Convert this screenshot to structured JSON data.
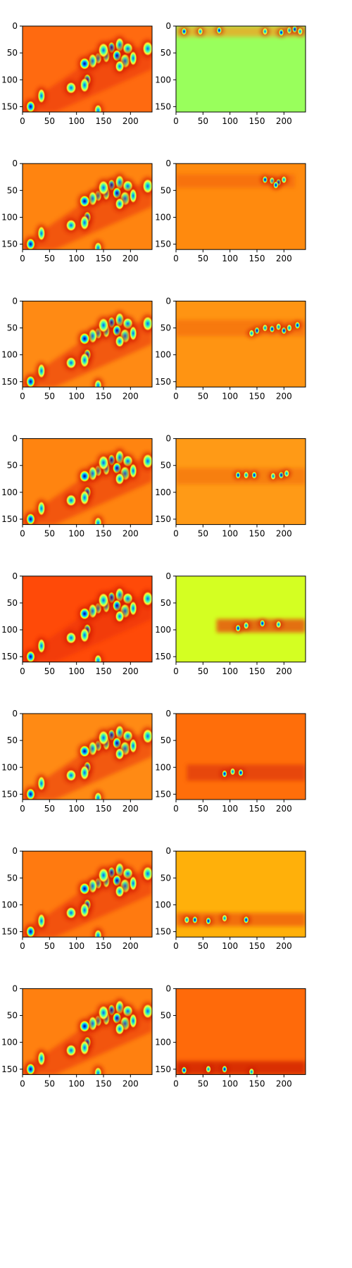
{
  "chart_data": {
    "type": "heatmap",
    "layout": {
      "rows": 8,
      "cols": 2
    },
    "colormap": "jet",
    "x_axis": {
      "range": [
        0,
        240
      ],
      "ticks": [
        0,
        50,
        100,
        150,
        200
      ]
    },
    "y_axis": {
      "range": [
        0,
        160
      ],
      "inverted": true,
      "ticks": [
        0,
        50,
        100,
        150
      ]
    },
    "features": [
      [
        165,
        40
      ],
      [
        180,
        35
      ],
      [
        195,
        42
      ],
      [
        155,
        55
      ],
      [
        175,
        55
      ],
      [
        190,
        65
      ],
      [
        140,
        60
      ],
      [
        130,
        65
      ],
      [
        115,
        70
      ],
      [
        205,
        60
      ],
      [
        180,
        75
      ],
      [
        150,
        45
      ],
      [
        120,
        100
      ],
      [
        115,
        110
      ],
      [
        90,
        115
      ],
      [
        35,
        130
      ],
      [
        15,
        150
      ],
      [
        232,
        42
      ],
      [
        140,
        157
      ]
    ],
    "panels": [
      {
        "row": 0,
        "col": 0,
        "kind": "full",
        "background": "#ff6a10"
      },
      {
        "row": 0,
        "col": 1,
        "kind": "band",
        "background": "#99ff5c",
        "band_y": [
          0,
          20
        ],
        "band_x": [
          0,
          240
        ],
        "band_color": "#f3a120",
        "features": [
          [
            15,
            10
          ],
          [
            45,
            10
          ],
          [
            80,
            8
          ],
          [
            165,
            10
          ],
          [
            195,
            12
          ],
          [
            210,
            8
          ],
          [
            220,
            6
          ],
          [
            230,
            10
          ]
        ]
      },
      {
        "row": 1,
        "col": 0,
        "kind": "full",
        "background": "#ff8410"
      },
      {
        "row": 1,
        "col": 1,
        "kind": "band",
        "background": "#ff8a0e",
        "band_y": [
          20,
          45
        ],
        "band_x": [
          0,
          220
        ],
        "band_color": "#f56a0c",
        "features": [
          [
            165,
            30
          ],
          [
            178,
            32
          ],
          [
            190,
            35
          ],
          [
            200,
            30
          ],
          [
            185,
            40
          ]
        ]
      },
      {
        "row": 2,
        "col": 0,
        "kind": "full",
        "background": "#ff8a14"
      },
      {
        "row": 2,
        "col": 1,
        "kind": "band",
        "background": "#ff9412",
        "band_y": [
          35,
          65
        ],
        "band_x": [
          0,
          240
        ],
        "band_color": "#f5700c",
        "features": [
          [
            150,
            55
          ],
          [
            165,
            50
          ],
          [
            178,
            52
          ],
          [
            190,
            48
          ],
          [
            200,
            55
          ],
          [
            210,
            50
          ],
          [
            225,
            45
          ],
          [
            140,
            60
          ]
        ]
      },
      {
        "row": 3,
        "col": 0,
        "kind": "full",
        "background": "#ff8410"
      },
      {
        "row": 3,
        "col": 1,
        "kind": "band",
        "background": "#ff9a16",
        "band_y": [
          55,
          85
        ],
        "band_x": [
          0,
          240
        ],
        "band_color": "#f5760c",
        "features": [
          [
            115,
            68
          ],
          [
            130,
            68
          ],
          [
            145,
            68
          ],
          [
            180,
            70
          ],
          [
            195,
            68
          ],
          [
            205,
            65
          ]
        ]
      },
      {
        "row": 4,
        "col": 0,
        "kind": "full",
        "background": "#ff4a08"
      },
      {
        "row": 4,
        "col": 1,
        "kind": "band",
        "background": "#d4ff22",
        "band_y": [
          80,
          105
        ],
        "band_x": [
          75,
          240
        ],
        "band_color": "#e84010",
        "features": [
          [
            115,
            97
          ],
          [
            130,
            92
          ],
          [
            160,
            88
          ],
          [
            190,
            90
          ]
        ]
      },
      {
        "row": 5,
        "col": 0,
        "kind": "full",
        "background": "#ff8a14"
      },
      {
        "row": 5,
        "col": 1,
        "kind": "band",
        "background": "#ff6e0a",
        "band_y": [
          95,
          125
        ],
        "band_x": [
          20,
          240
        ],
        "band_color": "#e03a0a",
        "features": [
          [
            90,
            112
          ],
          [
            105,
            108
          ],
          [
            120,
            110
          ]
        ]
      },
      {
        "row": 6,
        "col": 0,
        "kind": "full",
        "background": "#ff7a10"
      },
      {
        "row": 6,
        "col": 1,
        "kind": "band",
        "background": "#ffb00a",
        "band_y": [
          115,
          140
        ],
        "band_x": [
          0,
          240
        ],
        "band_color": "#ee5a0c",
        "features": [
          [
            35,
            128
          ],
          [
            20,
            128
          ],
          [
            60,
            130
          ],
          [
            90,
            125
          ],
          [
            130,
            128
          ]
        ]
      },
      {
        "row": 7,
        "col": 0,
        "kind": "full",
        "background": "#ff8010"
      },
      {
        "row": 7,
        "col": 1,
        "kind": "band",
        "background": "#ff6a0a",
        "band_y": [
          135,
          160
        ],
        "band_x": [
          0,
          240
        ],
        "band_color": "#cc1a06",
        "features": [
          [
            15,
            152
          ],
          [
            140,
            155
          ],
          [
            90,
            150
          ],
          [
            60,
            150
          ]
        ]
      }
    ]
  }
}
